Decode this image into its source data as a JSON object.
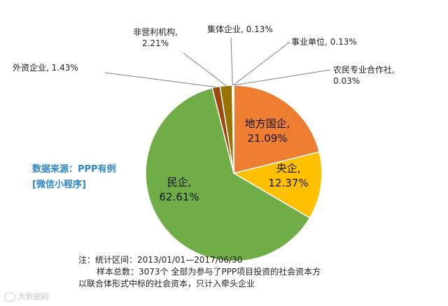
{
  "chart_data": {
    "type": "pie",
    "title": "",
    "slices": [
      {
        "label": "地方国企",
        "value": 21.09,
        "display": "地方国企,\n21.09%",
        "color": "#ed7d31",
        "label_pos": "inside"
      },
      {
        "label": "央企",
        "value": 12.37,
        "display": "央企,\n12.37%",
        "color": "#ffc000",
        "label_pos": "inside"
      },
      {
        "label": "民企",
        "value": 62.61,
        "display": "民企,\n62.61%",
        "color": "#70ad47",
        "label_pos": "inside"
      },
      {
        "label": "外资企业",
        "value": 1.43,
        "display": "外资企业, 1.43%",
        "color": "#9e480e",
        "label_pos": "outside"
      },
      {
        "label": "非营利机构",
        "value": 2.21,
        "display": "非营利机构,\n2.21%",
        "color": "#997300",
        "label_pos": "outside"
      },
      {
        "label": "集体企业",
        "value": 0.13,
        "display": "集体企业, 0.13%",
        "color": "#43682b",
        "label_pos": "outside"
      },
      {
        "label": "事业单位",
        "value": 0.13,
        "display": "事业单位, 0.13%",
        "color": "#2f5597",
        "label_pos": "outside"
      },
      {
        "label": "农民专业合作社",
        "value": 0.03,
        "display": "农民专业合作社,\n0.03%",
        "color": "#5b9bd5",
        "label_pos": "outside"
      }
    ]
  },
  "source": {
    "line1": "数据来源：PPP有例",
    "line2": "[微信小程序]"
  },
  "note": {
    "line1": "注：统计区间：2013/01/01—2017/06/30",
    "line2": "样本总数：3073个  全部为参与了PPP项目投资的社会资本方",
    "line3": "以联合体形式中标的社会资本，只计入牵头企业"
  },
  "watermark": {
    "text": "大数据网"
  }
}
